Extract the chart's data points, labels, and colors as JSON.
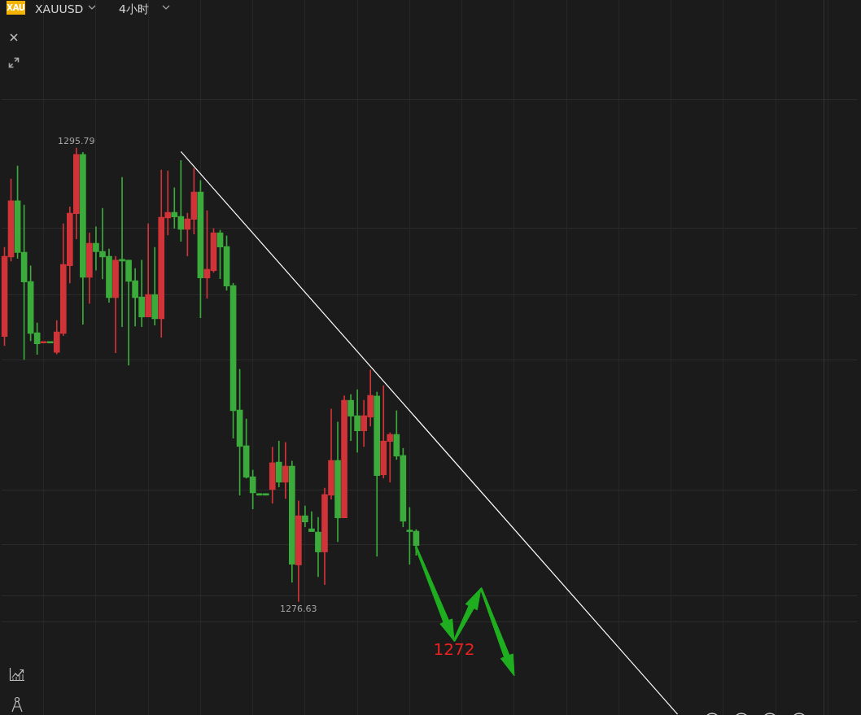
{
  "chart_data": {
    "type": "candlestick",
    "title": "XAUUSD",
    "subtitle": "4小时",
    "categories": [
      null,
      null,
      null,
      null,
      null,
      null,
      null,
      null,
      null,
      null,
      null,
      null,
      null,
      null,
      null,
      null,
      null,
      null,
      null,
      null,
      null,
      null,
      null,
      null,
      null,
      null,
      null,
      null,
      null,
      null,
      null,
      null,
      null,
      null,
      null,
      null,
      null,
      null,
      null,
      null,
      null,
      null,
      null,
      null,
      null,
      null,
      null,
      null,
      null,
      null,
      null,
      null,
      null,
      null,
      null,
      null,
      null,
      null,
      null,
      null,
      null,
      null,
      null,
      null,
      null,
      null,
      null,
      null,
      null,
      null,
      null,
      null,
      null,
      null,
      null,
      null,
      null,
      null,
      null,
      null,
      null,
      null,
      null,
      null,
      null,
      null,
      null,
      null,
      null,
      null,
      null,
      null,
      null,
      null,
      null,
      null,
      null,
      null,
      null,
      null,
      null,
      null,
      null,
      null,
      null,
      null,
      null,
      null,
      null,
      null,
      null,
      null,
      null,
      null,
      null,
      null,
      null,
      null,
      null,
      null,
      null,
      null,
      null,
      null,
      null,
      null,
      null,
      null,
      null,
      null,
      null
    ],
    "ohlc": [
      [
        1287.83,
        1291.6,
        1287.44,
        1291.22
      ],
      [
        1291.19,
        1294.48,
        1291.02,
        1293.56
      ],
      [
        1293.56,
        1295.03,
        1291.13,
        1291.38
      ],
      [
        1291.39,
        1293.38,
        1286.86,
        1290.13
      ],
      [
        1290.15,
        1290.81,
        1287.65,
        1287.96
      ],
      [
        1287.99,
        1288.4,
        1287.07,
        1287.52
      ],
      [
        1287.55,
        1287.6,
        1287.55,
        1287.6
      ],
      [
        1287.6,
        1287.6,
        1287.55,
        1287.55
      ],
      [
        1287.16,
        1288.5,
        1287.09,
        1288.02
      ],
      [
        1287.96,
        1292.59,
        1287.86,
        1290.87
      ],
      [
        1290.82,
        1293.31,
        1290.09,
        1293.04
      ],
      [
        1293.02,
        1295.79,
        1291.95,
        1295.52
      ],
      [
        1295.52,
        1295.61,
        1288.34,
        1290.33
      ],
      [
        1290.33,
        1292.21,
        1289.23,
        1291.77
      ],
      [
        1291.77,
        1292.46,
        1290.63,
        1291.41
      ],
      [
        1291.42,
        1293.25,
        1290.26,
        1291.19
      ],
      [
        1291.22,
        1291.53,
        1289.27,
        1289.47
      ],
      [
        1289.47,
        1291.22,
        1287.14,
        1291.05
      ],
      [
        1291.08,
        1294.55,
        1288.24,
        1291.02
      ],
      [
        1291.05,
        1291.05,
        1286.62,
        1290.16
      ],
      [
        1290.19,
        1290.7,
        1288.27,
        1289.47
      ],
      [
        1289.5,
        1291.05,
        1288.24,
        1288.65
      ],
      [
        1288.65,
        1292.59,
        1288.65,
        1289.6
      ],
      [
        1289.6,
        1291.6,
        1288.31,
        1288.58
      ],
      [
        1288.58,
        1294.86,
        1287.79,
        1292.87
      ],
      [
        1292.84,
        1294.83,
        1292.12,
        1293.07
      ],
      [
        1293.07,
        1294.11,
        1292.4,
        1292.88
      ],
      [
        1292.9,
        1295.27,
        1291.85,
        1292.36
      ],
      [
        1292.36,
        1293.04,
        1291.23,
        1292.8
      ],
      [
        1292.78,
        1294.93,
        1292.16,
        1293.93
      ],
      [
        1293.93,
        1294.42,
        1288.62,
        1290.3
      ],
      [
        1290.3,
        1293.14,
        1289.44,
        1290.67
      ],
      [
        1290.61,
        1292.39,
        1290.54,
        1292.21
      ],
      [
        1292.21,
        1292.32,
        1290.27,
        1291.61
      ],
      [
        1291.63,
        1292.08,
        1289.78,
        1289.96
      ],
      [
        1289.98,
        1290.08,
        1283.53,
        1284.69
      ],
      [
        1284.72,
        1286.44,
        1281.12,
        1283.18
      ],
      [
        1283.21,
        1284.34,
        1281.84,
        1281.88
      ],
      [
        1281.9,
        1282.18,
        1280.54,
        1281.22
      ],
      [
        1281.18,
        1281.18,
        1281.12,
        1281.12
      ],
      [
        1281.18,
        1281.18,
        1281.12,
        1281.12
      ],
      [
        1281.36,
        1283.15,
        1280.78,
        1282.49
      ],
      [
        1282.52,
        1283.41,
        1281.47,
        1281.67
      ],
      [
        1281.67,
        1283.35,
        1280.98,
        1282.35
      ],
      [
        1282.35,
        1282.56,
        1277.44,
        1278.2
      ],
      [
        1278.17,
        1280.88,
        1276.63,
        1280.25
      ],
      [
        1280.25,
        1280.66,
        1279.78,
        1279.99
      ],
      [
        1279.7,
        1280.42,
        1279.58,
        1279.58
      ],
      [
        1279.56,
        1280.18,
        1277.68,
        1278.72
      ],
      [
        1278.72,
        1281.42,
        1277.34,
        1281.15
      ],
      [
        1281.12,
        1284.76,
        1280.95,
        1282.59
      ],
      [
        1282.59,
        1284.21,
        1279.16,
        1280.16
      ],
      [
        1280.16,
        1285.32,
        1280.16,
        1285.13
      ],
      [
        1285.13,
        1285.37,
        1283.43,
        1284.46
      ],
      [
        1284.48,
        1285.58,
        1282.94,
        1283.84
      ],
      [
        1283.84,
        1285.13,
        1283.18,
        1284.48
      ],
      [
        1284.42,
        1286.41,
        1284.04,
        1285.34
      ],
      [
        1285.31,
        1285.48,
        1278.54,
        1281.95
      ],
      [
        1281.98,
        1285.75,
        1281.84,
        1283.41
      ],
      [
        1283.39,
        1283.76,
        1281.67,
        1283.69
      ],
      [
        1283.69,
        1284.69,
        1282.63,
        1282.77
      ],
      [
        1282.8,
        1283.1,
        1279.78,
        1280.02
      ],
      [
        1279.63,
        1280.6,
        1278.2,
        1279.58
      ],
      [
        1279.6,
        1279.67,
        1278.58,
        1278.99
      ],
      null,
      null,
      null,
      null,
      null,
      null,
      null,
      null,
      null,
      null,
      null,
      null,
      null,
      null,
      null,
      null,
      null,
      null,
      null,
      null,
      null,
      null,
      null,
      null,
      null,
      null,
      null,
      null,
      null,
      null,
      null,
      null,
      null,
      null,
      null,
      null,
      null,
      null,
      null,
      null,
      null,
      null,
      null,
      null,
      null,
      null,
      null,
      null,
      null,
      null,
      null,
      null,
      null,
      null,
      null,
      null,
      null,
      null,
      null,
      null,
      null,
      null,
      null,
      null,
      null,
      null,
      null
    ],
    "colors": [
      "#d03438",
      "#d03438",
      "#3bab3b",
      "#3bab3b",
      "#3bab3b",
      "#3bab3b",
      "#d03438",
      "#3bab3b",
      "#d03438",
      "#d03438",
      "#d03438",
      "#d03438",
      "#3bab3b",
      "#d03438",
      "#3bab3b",
      "#3bab3b",
      "#3bab3b",
      "#d03438",
      "#3bab3b",
      "#3bab3b",
      "#3bab3b",
      "#3bab3b",
      "#d03438",
      "#3bab3b",
      "#d03438",
      "#d03438",
      "#3bab3b",
      "#3bab3b",
      "#d03438",
      "#d03438",
      "#3bab3b",
      "#d03438",
      "#d03438",
      "#3bab3b",
      "#3bab3b",
      "#3bab3b",
      "#3bab3b",
      "#3bab3b",
      "#3bab3b",
      "#3bab3b",
      "#3bab3b",
      "#d03438",
      "#3bab3b",
      "#d03438",
      "#3bab3b",
      "#d03438",
      "#3bab3b",
      "#3bab3b",
      "#3bab3b",
      "#d03438",
      "#d03438",
      "#3bab3b",
      "#d03438",
      "#3bab3b",
      "#3bab3b",
      "#d03438",
      "#d03438",
      "#3bab3b",
      "#d03438",
      "#d03438",
      "#3bab3b",
      "#3bab3b",
      "#3bab3b",
      "#3bab3b",
      null,
      null,
      null,
      null,
      null,
      null,
      null,
      null,
      null,
      null,
      null,
      null,
      null,
      null,
      null,
      null,
      null,
      null,
      null,
      null,
      null,
      null,
      null,
      null,
      null,
      null,
      null,
      null,
      null,
      null,
      null,
      null,
      null,
      null,
      null,
      null,
      null,
      null,
      null,
      null,
      null,
      null,
      null,
      null,
      null,
      null,
      null,
      null,
      null,
      null,
      null,
      null,
      null,
      null,
      null,
      null,
      null,
      null,
      null,
      null,
      null,
      null,
      null,
      null,
      null,
      null,
      null
    ],
    "series": [
      {
        "type": "line",
        "color": "#ffffff",
        "values": [
          null,
          null,
          null,
          null,
          null,
          null,
          null,
          null,
          null,
          null,
          null,
          null,
          null,
          null,
          null,
          null,
          null,
          null,
          null,
          null,
          null,
          null,
          null,
          null,
          null,
          null,
          null,
          1295.64,
          null,
          null,
          null,
          null,
          null,
          null,
          null,
          null,
          null,
          null,
          null,
          null,
          null,
          null,
          null,
          null,
          null,
          null,
          null,
          null,
          null,
          null,
          null,
          null,
          null,
          null,
          null,
          null,
          null,
          null,
          null,
          null,
          null,
          null,
          null,
          null,
          null,
          null,
          null,
          null,
          null,
          null,
          null,
          null,
          null,
          null,
          null,
          null,
          null,
          null,
          null,
          null,
          null,
          null,
          null,
          null,
          null,
          null,
          null,
          null,
          null,
          null,
          null,
          null,
          null,
          null,
          null,
          null,
          null,
          null,
          null,
          null,
          null,
          null,
          null,
          1271.86,
          null,
          null,
          null,
          null,
          null,
          null,
          null,
          null,
          null,
          null,
          null,
          null,
          null,
          null,
          null,
          null,
          null,
          null,
          null,
          null,
          null,
          null,
          null,
          null,
          null,
          null,
          null
        ]
      }
    ],
    "ylim": [
      1271.83,
      1302.05
    ],
    "yticks": [
      {
        "value": 1297.85,
        "label": null
      },
      {
        "value": 1292.39,
        "label": null
      },
      {
        "value": 1289.6,
        "label": null
      },
      {
        "value": 1286.85,
        "label": null
      },
      {
        "value": 1281.32,
        "label": null
      },
      {
        "value": 1279.02,
        "label": null
      },
      {
        "value": 1276.88,
        "label": null
      },
      {
        "value": 1275.75,
        "label": null
      }
    ],
    "grid": true,
    "tick_labels": false,
    "annotations": [
      "XAU",
      {
        "text": "1295.79",
        "y": 1295.79
      },
      {
        "text": "1276.63",
        "y": 1276.63
      },
      "1272"
    ]
  }
}
